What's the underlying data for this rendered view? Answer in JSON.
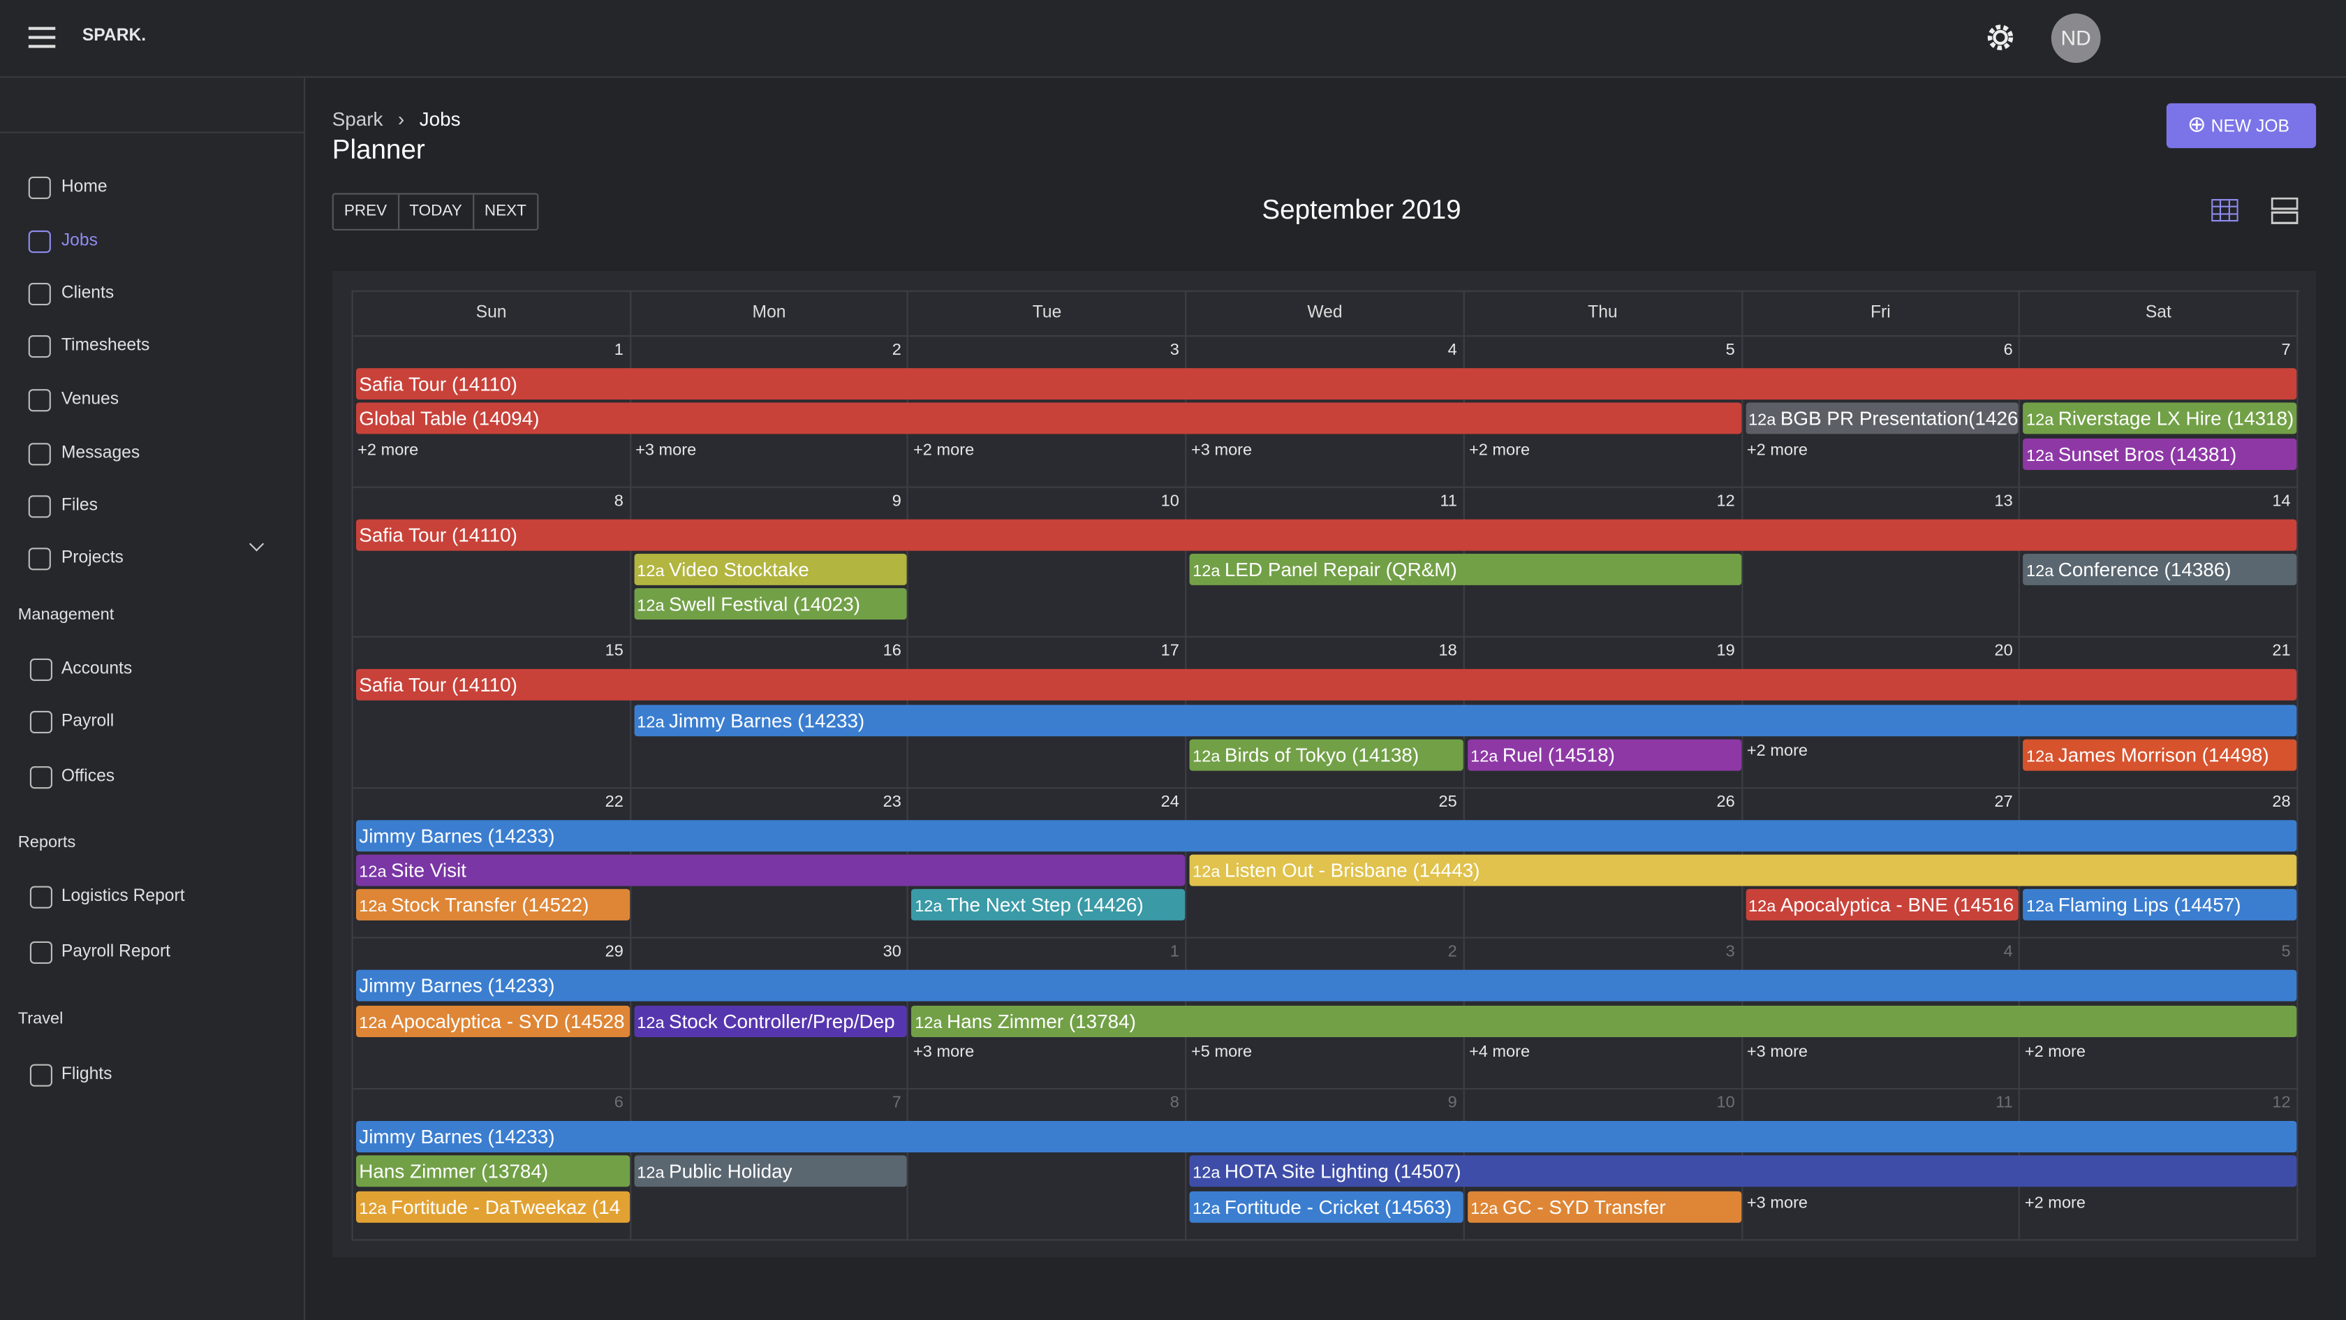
{
  "header": {
    "brand": "SPARK.",
    "avatar": "ND"
  },
  "sidebar": {
    "nav": [
      "Home",
      "Jobs",
      "Clients",
      "Timesheets",
      "Venues",
      "Messages",
      "Files",
      "Projects"
    ],
    "sections": [
      {
        "title": "Management",
        "items": [
          "Accounts",
          "Payroll",
          "Offices"
        ]
      },
      {
        "title": "Reports",
        "items": [
          "Logistics Report",
          "Payroll Report"
        ]
      },
      {
        "title": "Travel",
        "items": [
          "Flights"
        ]
      }
    ]
  },
  "breadcrumb": [
    "Spark",
    "Jobs"
  ],
  "title": "Planner",
  "new_job": "NEW JOB",
  "nav_buttons": [
    "PREV",
    "TODAY",
    "NEXT"
  ],
  "month": "September 2019",
  "weekdays": [
    "Sun",
    "Mon",
    "Tue",
    "Wed",
    "Thu",
    "Fri",
    "Sat"
  ],
  "weeks": [
    {
      "days": [
        "1",
        "2",
        "3",
        "4",
        "5",
        "6",
        "7"
      ],
      "events": [
        {
          "label": "Safia Tour (14110)"
        },
        {
          "label": "Global Table (14094)"
        },
        {
          "time": "12a",
          "label": "BGB PR Presentation(1426"
        },
        {
          "time": "12a",
          "label": "Riverstage LX Hire (14318)"
        },
        {
          "time": "12a",
          "label": "Sunset Bros (14381)"
        }
      ],
      "more": [
        "+2 more",
        "+3 more",
        "+2 more",
        "+3 more",
        "+2 more",
        "+2 more"
      ]
    },
    {
      "days": [
        "8",
        "9",
        "10",
        "11",
        "12",
        "13",
        "14"
      ],
      "events": [
        {
          "label": "Safia Tour (14110)"
        },
        {
          "time": "12a",
          "label": "Video Stocktake"
        },
        {
          "time": "12a",
          "label": "Swell Festival (14023)"
        },
        {
          "time": "12a",
          "label": "LED Panel Repair (QR&M)"
        },
        {
          "time": "12a",
          "label": "Conference (14386)"
        }
      ],
      "more": []
    },
    {
      "days": [
        "15",
        "16",
        "17",
        "18",
        "19",
        "20",
        "21"
      ],
      "events": [
        {
          "label": "Safia Tour (14110)"
        },
        {
          "time": "12a",
          "label": "Jimmy Barnes (14233)"
        },
        {
          "time": "12a",
          "label": "Birds of Tokyo (14138)"
        },
        {
          "time": "12a",
          "label": "Ruel (14518)"
        },
        {
          "time": "12a",
          "label": "James Morrison (14498)"
        }
      ],
      "more": [
        "+2 more"
      ]
    },
    {
      "days": [
        "22",
        "23",
        "24",
        "25",
        "26",
        "27",
        "28"
      ],
      "events": [
        {
          "label": "Jimmy Barnes (14233)"
        },
        {
          "time": "12a",
          "label": "Site Visit"
        },
        {
          "time": "12a",
          "label": "Listen Out - Brisbane (14443)"
        },
        {
          "time": "12a",
          "label": "Stock Transfer (14522)"
        },
        {
          "time": "12a",
          "label": "The Next Step (14426)"
        },
        {
          "time": "12a",
          "label": "Apocalyptica - BNE (14516"
        },
        {
          "time": "12a",
          "label": "Flaming Lips (14457)"
        }
      ],
      "more": []
    },
    {
      "days": [
        "29",
        "30",
        "1",
        "2",
        "3",
        "4",
        "5"
      ],
      "events": [
        {
          "label": "Jimmy Barnes (14233)"
        },
        {
          "time": "12a",
          "label": "Apocalyptica - SYD (14528"
        },
        {
          "time": "12a",
          "label": "Stock Controller/Prep/Dep"
        },
        {
          "time": "12a",
          "label": "Hans Zimmer (13784)"
        }
      ],
      "more": [
        "+3 more",
        "+5 more",
        "+4 more",
        "+3 more",
        "+2 more"
      ]
    },
    {
      "days": [
        "6",
        "7",
        "8",
        "9",
        "10",
        "11",
        "12"
      ],
      "events": [
        {
          "label": "Jimmy Barnes (14233)"
        },
        {
          "label": "Hans Zimmer (13784)"
        },
        {
          "time": "12a",
          "label": "Public Holiday"
        },
        {
          "time": "12a",
          "label": "HOTA Site Lighting (14507)"
        },
        {
          "time": "12a",
          "label": "Fortitude - DaTweekaz (14"
        },
        {
          "time": "12a",
          "label": "Fortitude - Cricket (14563)"
        },
        {
          "time": "12a",
          "label": "GC - SYD Transfer"
        }
      ],
      "more": [
        "+3 more",
        "+2 more"
      ]
    }
  ]
}
